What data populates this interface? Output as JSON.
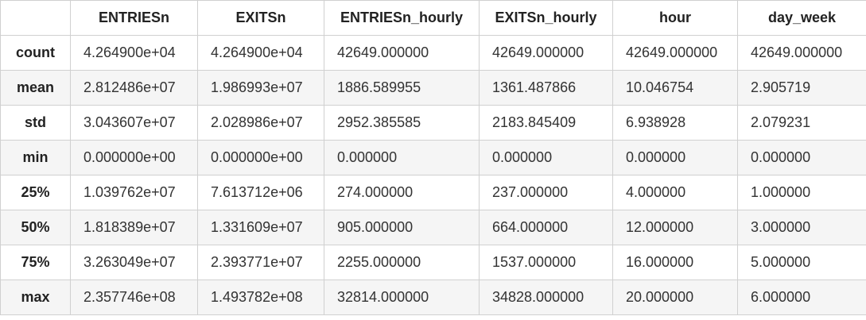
{
  "table": {
    "index_header": "",
    "columns": [
      "ENTRIESn",
      "EXITSn",
      "ENTRIESn_hourly",
      "EXITSn_hourly",
      "hour",
      "day_week"
    ],
    "rows": [
      {
        "label": "count",
        "values": [
          "4.264900e+04",
          "4.264900e+04",
          "42649.000000",
          "42649.000000",
          "42649.000000",
          "42649.000000"
        ]
      },
      {
        "label": "mean",
        "values": [
          "2.812486e+07",
          "1.986993e+07",
          "1886.589955",
          "1361.487866",
          "10.046754",
          "2.905719"
        ]
      },
      {
        "label": "std",
        "values": [
          "3.043607e+07",
          "2.028986e+07",
          "2952.385585",
          "2183.845409",
          "6.938928",
          "2.079231"
        ]
      },
      {
        "label": "min",
        "values": [
          "0.000000e+00",
          "0.000000e+00",
          "0.000000",
          "0.000000",
          "0.000000",
          "0.000000"
        ]
      },
      {
        "label": "25%",
        "values": [
          "1.039762e+07",
          "7.613712e+06",
          "274.000000",
          "237.000000",
          "4.000000",
          "1.000000"
        ]
      },
      {
        "label": "50%",
        "values": [
          "1.818389e+07",
          "1.331609e+07",
          "905.000000",
          "664.000000",
          "12.000000",
          "3.000000"
        ]
      },
      {
        "label": "75%",
        "values": [
          "3.263049e+07",
          "2.393771e+07",
          "2255.000000",
          "1537.000000",
          "16.000000",
          "5.000000"
        ]
      },
      {
        "label": "max",
        "values": [
          "2.357746e+08",
          "1.493782e+08",
          "32814.000000",
          "34828.000000",
          "20.000000",
          "6.000000"
        ]
      }
    ]
  }
}
